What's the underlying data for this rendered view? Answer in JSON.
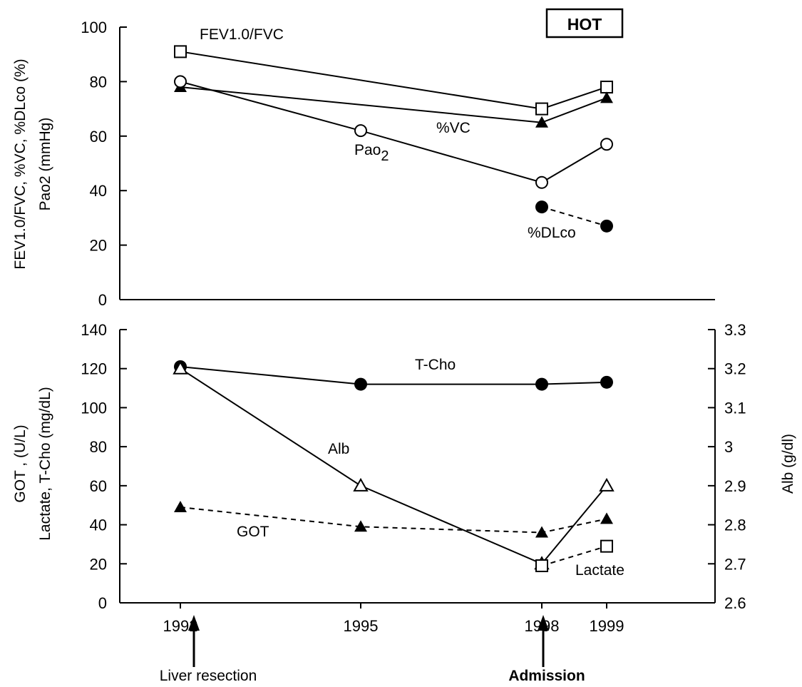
{
  "chart_data": [
    {
      "type": "line",
      "title": "",
      "ylabel_line1": "FEV1.0/FVC, %VC, %DLco (%)",
      "ylabel_line2": "Pao2 (mmHg)",
      "ylim": [
        0,
        100
      ],
      "yticks": [
        "0",
        "20",
        "40",
        "60",
        "80",
        "100"
      ],
      "x": [
        1992,
        1995,
        1998,
        1999
      ],
      "badge": "HOT",
      "series": [
        {
          "name": "FEV1.0/FVC",
          "marker": "open-square",
          "line": "solid",
          "x": [
            1992,
            1998,
            1999
          ],
          "values": [
            91,
            70,
            78
          ]
        },
        {
          "name": "%VC",
          "marker": "filled-triangle",
          "line": "solid",
          "x": [
            1992,
            1998,
            1999
          ],
          "values": [
            78,
            65,
            74
          ]
        },
        {
          "name": "Pao2",
          "marker": "open-circle",
          "line": "solid",
          "x": [
            1992,
            1995,
            1998,
            1999
          ],
          "values": [
            80,
            62,
            43,
            57
          ]
        },
        {
          "name": "%DLco",
          "marker": "filled-circle",
          "line": "dashed",
          "x": [
            1998,
            1999
          ],
          "values": [
            34,
            27
          ]
        }
      ],
      "labels": {
        "fev": "FEV1.0/FVC",
        "vc": "%VC",
        "pao2_main": "Pao",
        "pao2_sub": "2",
        "dlco": "%DLco"
      }
    },
    {
      "type": "line",
      "title": "",
      "ylabel_left_line1": "GOT , (U/L)",
      "ylabel_left_line2": "Lactate, T-Cho (mg/dL)",
      "ylabel_right": "Alb  (g/dl)",
      "ylim": [
        0,
        140
      ],
      "yticks": [
        "0",
        "20",
        "40",
        "60",
        "80",
        "100",
        "120",
        "140"
      ],
      "ylim_right": [
        2.6,
        3.3
      ],
      "yticks_right": [
        "2.6",
        "2.7",
        "2.8",
        "2.9",
        "3",
        "3.1",
        "3.2",
        "3.3"
      ],
      "x": [
        1992,
        1995,
        1998,
        1999
      ],
      "xticks": [
        "1992",
        "1995",
        "1998",
        "1999"
      ],
      "series": [
        {
          "name": "T-Cho",
          "marker": "filled-circle",
          "line": "solid",
          "axis": "left",
          "x": [
            1992,
            1995,
            1998,
            1999
          ],
          "values": [
            121,
            112,
            112,
            113
          ]
        },
        {
          "name": "Alb",
          "marker": "open-triangle",
          "line": "solid",
          "axis": "right",
          "x": [
            1992,
            1995,
            1998,
            1999
          ],
          "values": [
            3.2,
            2.9,
            2.7,
            2.9
          ]
        },
        {
          "name": "GOT",
          "marker": "filled-triangle",
          "line": "dashed",
          "axis": "left",
          "x": [
            1992,
            1995,
            1998,
            1999
          ],
          "values": [
            49,
            39,
            36,
            43
          ]
        },
        {
          "name": "Lactate",
          "marker": "open-square",
          "line": "dashed",
          "axis": "left",
          "x": [
            1998,
            1999
          ],
          "values": [
            19,
            29
          ]
        }
      ],
      "labels": {
        "tcho": "T-Cho",
        "alb": "Alb",
        "got": "GOT",
        "lactate": "Lactate"
      },
      "events": {
        "liver": "Liver resection",
        "admission": "Admission"
      }
    }
  ]
}
